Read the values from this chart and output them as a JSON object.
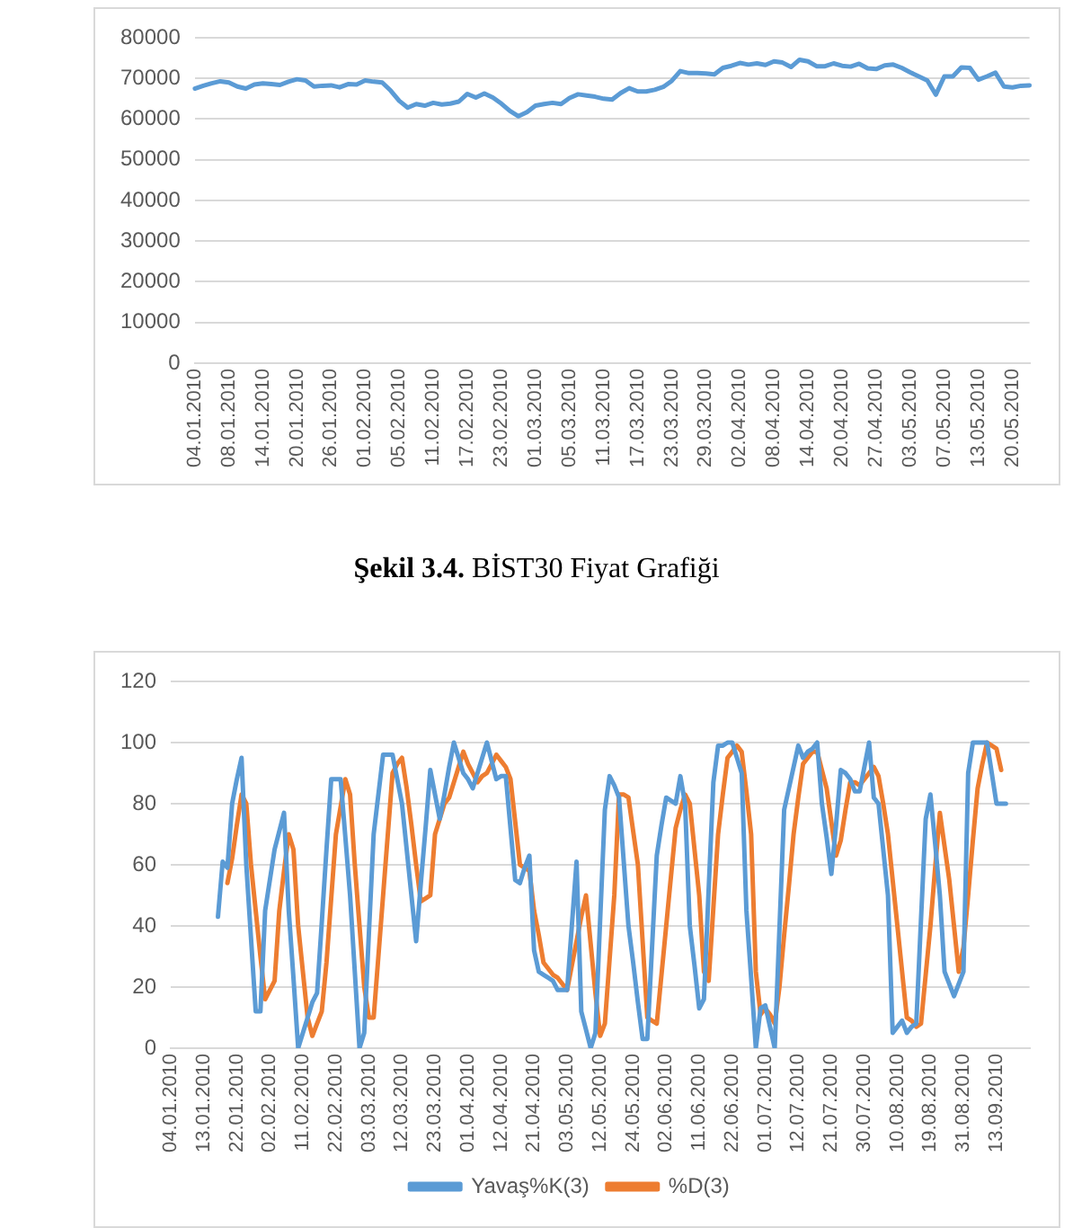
{
  "chart_data": [
    {
      "type": "line",
      "categories": [
        "04.01.2010",
        null,
        null,
        null,
        "08.01.2010",
        null,
        null,
        null,
        "14.01.2010",
        null,
        null,
        null,
        "20.01.2010",
        null,
        null,
        null,
        "26.01.2010",
        null,
        null,
        null,
        "01.02.2010",
        null,
        null,
        null,
        "05.02.2010",
        null,
        null,
        null,
        "11.02.2010",
        null,
        null,
        null,
        "17.02.2010",
        null,
        null,
        null,
        "23.02.2010",
        null,
        null,
        null,
        "01.03.2010",
        null,
        null,
        null,
        "05.03.2010",
        null,
        null,
        null,
        "11.03.2010",
        null,
        null,
        null,
        "17.03.2010",
        null,
        null,
        null,
        "23.03.2010",
        null,
        null,
        null,
        "29.03.2010",
        null,
        null,
        null,
        "02.04.2010",
        null,
        null,
        null,
        "08.04.2010",
        null,
        null,
        null,
        "14.04.2010",
        null,
        null,
        null,
        "20.04.2010",
        null,
        null,
        null,
        "27.04.2010",
        null,
        null,
        null,
        "03.05.2010",
        null,
        null,
        null,
        "07.05.2010",
        null,
        null,
        null,
        "13.05.2010",
        null,
        null,
        null,
        "20.05.2010",
        null,
        null
      ],
      "values": [
        67500,
        68200,
        68800,
        69300,
        69000,
        68000,
        67500,
        68500,
        68800,
        68600,
        68400,
        69200,
        69800,
        69500,
        68000,
        68200,
        68300,
        67800,
        68600,
        68500,
        69500,
        69200,
        69000,
        67000,
        64500,
        62800,
        63700,
        63300,
        64000,
        63600,
        63800,
        64300,
        66200,
        65300,
        66300,
        65300,
        63800,
        62000,
        60700,
        61700,
        63300,
        63700,
        64000,
        63700,
        65200,
        66100,
        65800,
        65500,
        65000,
        64800,
        66400,
        67600,
        66800,
        66800,
        67200,
        67900,
        69400,
        71800,
        71300,
        71300,
        71200,
        71000,
        72600,
        73100,
        73800,
        73400,
        73700,
        73300,
        74200,
        73900,
        72800,
        74600,
        74200,
        73000,
        73000,
        73700,
        73100,
        72900,
        73600,
        72500,
        72300,
        73200,
        73400,
        72600,
        71500,
        70500,
        69500,
        66000,
        70500,
        70500,
        72700,
        72600,
        69700,
        70500,
        71400,
        68000,
        67800,
        68200,
        68300
      ],
      "color": "#5b9bd5",
      "ylim": [
        0,
        80000
      ],
      "yticks": [
        0,
        10000,
        20000,
        30000,
        40000,
        50000,
        60000,
        70000,
        80000
      ],
      "grid": "y",
      "annotations": [
        "Şekil 3.4. BİST30 Fiyat Grafiği"
      ]
    },
    {
      "type": "line",
      "categories": [
        "04.01.2010",
        null,
        null,
        null,
        null,
        null,
        null,
        "13.01.2010",
        null,
        null,
        null,
        null,
        null,
        null,
        "22.01.2010",
        null,
        null,
        null,
        null,
        null,
        null,
        "02.02.2010",
        null,
        null,
        null,
        null,
        null,
        null,
        "11.02.2010",
        null,
        null,
        null,
        null,
        null,
        null,
        "22.02.2010",
        null,
        null,
        null,
        null,
        null,
        null,
        "03.03.2010",
        null,
        null,
        null,
        null,
        null,
        null,
        "12.03.2010",
        null,
        null,
        null,
        null,
        null,
        null,
        "23.03.2010",
        null,
        null,
        null,
        null,
        null,
        null,
        "01.04.2010",
        null,
        null,
        null,
        null,
        null,
        null,
        "12.04.2010",
        null,
        null,
        null,
        null,
        null,
        null,
        "21.04.2010",
        null,
        null,
        null,
        null,
        null,
        null,
        "03.05.2010",
        null,
        null,
        null,
        null,
        null,
        null,
        "12.05.2010",
        null,
        null,
        null,
        null,
        null,
        null,
        "24.05.2010",
        null,
        null,
        null,
        null,
        null,
        null,
        "02.06.2010",
        null,
        null,
        null,
        null,
        null,
        null,
        "11.06.2010",
        null,
        null,
        null,
        null,
        null,
        null,
        "22.06.2010",
        null,
        null,
        null,
        null,
        null,
        null,
        "01.07.2010",
        null,
        null,
        null,
        null,
        null,
        null,
        "12.07.2010",
        null,
        null,
        null,
        null,
        null,
        null,
        "21.07.2010",
        null,
        null,
        null,
        null,
        null,
        null,
        "30.07.2010",
        null,
        null,
        null,
        null,
        null,
        null,
        "10.08.2010",
        null,
        null,
        null,
        null,
        null,
        null,
        "19.08.2010",
        null,
        null,
        null,
        null,
        null,
        null,
        "31.08.2010",
        null,
        null,
        null,
        null,
        null,
        null,
        "13.09.2010",
        null,
        null,
        null,
        null,
        null,
        null,
        null
      ],
      "ylim": [
        0,
        120
      ],
      "yticks": [
        0,
        20,
        40,
        60,
        80,
        100,
        120
      ],
      "grid": "y",
      "legend": "bottom",
      "series": [
        {
          "name": "Yavaş%K(3)",
          "color": "#5b9bd5",
          "values": [
            null,
            null,
            null,
            null,
            null,
            null,
            null,
            null,
            null,
            null,
            43,
            61,
            59,
            80,
            88,
            95,
            60,
            36,
            12,
            12,
            45,
            55,
            65,
            71,
            77,
            45,
            23,
            0,
            5,
            10,
            15,
            18,
            41,
            65,
            88,
            88,
            88,
            69,
            50,
            25,
            0,
            5,
            38,
            70,
            83,
            96,
            96,
            96,
            88,
            80,
            65,
            50,
            35,
            54,
            72,
            91,
            83,
            75,
            83,
            92,
            100,
            95,
            90,
            88,
            85,
            90,
            95,
            100,
            94,
            88,
            89,
            89,
            72,
            55,
            54,
            59,
            63,
            32,
            25,
            24,
            23,
            22,
            19,
            19,
            19,
            40,
            61,
            12,
            6,
            0,
            5,
            42,
            78,
            89,
            86,
            82,
            61,
            40,
            28,
            15,
            3,
            3,
            33,
            63,
            73,
            82,
            81,
            80,
            89,
            80,
            40,
            27,
            13,
            16,
            52,
            87,
            99,
            99,
            100,
            100,
            95,
            90,
            45,
            23,
            0,
            13,
            14,
            7,
            0,
            39,
            78,
            85,
            92,
            99,
            95,
            97,
            98,
            100,
            80,
            69,
            57,
            73,
            91,
            90,
            88,
            84,
            84,
            92,
            100,
            82,
            80,
            65,
            50,
            5,
            7,
            9,
            5,
            7,
            8,
            42,
            75,
            83,
            67,
            50,
            25,
            21,
            17,
            21,
            25,
            90,
            100,
            100,
            100,
            100,
            90,
            80,
            80,
            80,
            null,
            null,
            null,
            null,
            null
          ]
        },
        {
          "name": "%D(3)",
          "color": "#ed7d31",
          "values": [
            null,
            null,
            null,
            null,
            null,
            null,
            null,
            null,
            null,
            null,
            null,
            null,
            54,
            62,
            73,
            83,
            80,
            60,
            45,
            30,
            16,
            19,
            22,
            45,
            58,
            70,
            65,
            40,
            25,
            10,
            4,
            8,
            12,
            28,
            49,
            70,
            79,
            88,
            83,
            60,
            40,
            20,
            10,
            10,
            30,
            50,
            70,
            90,
            93,
            95,
            85,
            73,
            60,
            48,
            49,
            50,
            70,
            75,
            80,
            82,
            87,
            92,
            97,
            93,
            90,
            87,
            89,
            90,
            93,
            96,
            94,
            92,
            88,
            74,
            60,
            59,
            58,
            45,
            37,
            28,
            26,
            24,
            23,
            21,
            19,
            27,
            35,
            43,
            50,
            34,
            18,
            4,
            8,
            29,
            50,
            83,
            83,
            82,
            71,
            60,
            35,
            10,
            9,
            8,
            24,
            40,
            56,
            72,
            78,
            83,
            80,
            65,
            50,
            25,
            22,
            46,
            70,
            83,
            95,
            97,
            99,
            97,
            84,
            70,
            25,
            11,
            13,
            11,
            8,
            20,
            37,
            53,
            70,
            82,
            93,
            95,
            97,
            97,
            91,
            85,
            74,
            63,
            68,
            78,
            87,
            87,
            86,
            88,
            90,
            92,
            89,
            80,
            70,
            55,
            40,
            25,
            10,
            9,
            7,
            8,
            24,
            40,
            59,
            77,
            66,
            55,
            40,
            25,
            33,
            50,
            68,
            85,
            93,
            100,
            99,
            98,
            91,
            null,
            null,
            null,
            null,
            null,
            null
          ]
        }
      ]
    }
  ]
}
